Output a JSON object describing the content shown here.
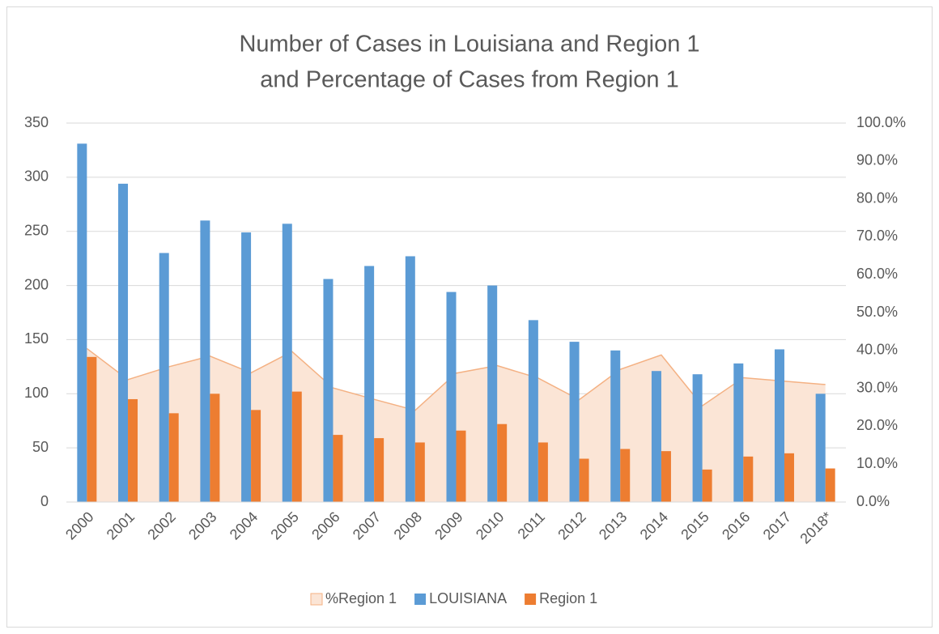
{
  "chart_data": {
    "type": "bar",
    "title": [
      "Number of Cases in Louisiana and Region 1",
      "and Percentage of Cases from Region 1"
    ],
    "categories": [
      "2000",
      "2001",
      "2002",
      "2003",
      "2004",
      "2005",
      "2006",
      "2007",
      "2008",
      "2009",
      "2010",
      "2011",
      "2012",
      "2013",
      "2014",
      "2015",
      "2016",
      "2017",
      "2018*"
    ],
    "series": [
      {
        "name": "%Region 1",
        "type": "area",
        "axis": "y2",
        "color": "#f4b183",
        "fill": "#fbe5d6",
        "values": [
          40.5,
          32.3,
          35.7,
          38.5,
          34.1,
          39.7,
          30.1,
          27.1,
          24.2,
          34.0,
          36.0,
          32.7,
          27.0,
          35.0,
          38.8,
          25.4,
          32.8,
          31.9,
          31.0
        ]
      },
      {
        "name": "LOUISIANA",
        "type": "bar",
        "color": "#5b9bd5",
        "values": [
          331,
          294,
          230,
          260,
          249,
          257,
          206,
          218,
          227,
          194,
          200,
          168,
          148,
          140,
          121,
          118,
          128,
          141,
          100
        ]
      },
      {
        "name": "Region 1",
        "type": "bar",
        "color": "#ed7d31",
        "values": [
          134,
          95,
          82,
          100,
          85,
          102,
          62,
          59,
          55,
          66,
          72,
          55,
          40,
          49,
          47,
          30,
          42,
          45,
          31
        ]
      }
    ],
    "ylim": [
      0,
      350
    ],
    "yticks": [
      0,
      50,
      100,
      150,
      200,
      250,
      300,
      350
    ],
    "y2lim": [
      0,
      100
    ],
    "y2ticks": [
      {
        "value": 0,
        "label": "0.0%"
      },
      {
        "value": 10,
        "label": "10.0%"
      },
      {
        "value": 20,
        "label": "20.0%"
      },
      {
        "value": 30,
        "label": "30.0%"
      },
      {
        "value": 40,
        "label": "40.0%"
      },
      {
        "value": 50,
        "label": "50.0%"
      },
      {
        "value": 60,
        "label": "60.0%"
      },
      {
        "value": 70,
        "label": "70.0%"
      },
      {
        "value": 80,
        "label": "80.0%"
      },
      {
        "value": 90,
        "label": "90.0%"
      },
      {
        "value": 100,
        "label": "100.0%"
      }
    ],
    "grid": true,
    "legend": "bottom"
  }
}
